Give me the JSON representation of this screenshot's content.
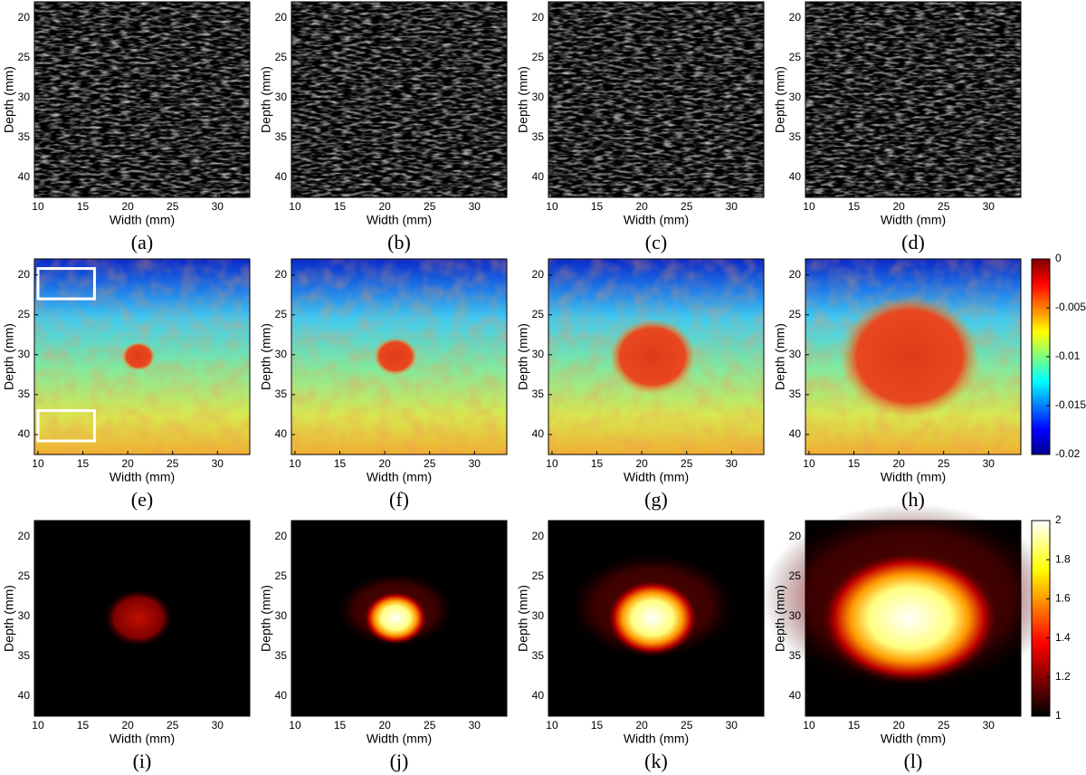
{
  "axes": {
    "x_label": "Width (mm)",
    "y_label": "Depth (mm)",
    "xlim": [
      9.6,
      33.6
    ],
    "xticks": [
      10,
      15,
      20,
      25,
      30
    ],
    "ylim": [
      18,
      42.5
    ],
    "yticks": [
      20,
      25,
      30,
      35,
      40
    ]
  },
  "rows": [
    {
      "panels": [
        "(a)",
        "(b)",
        "(c)",
        "(d)"
      ]
    },
    {
      "panels": [
        "(e)",
        "(f)",
        "(g)",
        "(h)"
      ],
      "colorbar": {
        "lim": [
          -0.02,
          0
        ],
        "ticks": [
          0,
          -0.005,
          -0.01,
          -0.015,
          -0.02
        ]
      }
    },
    {
      "panels": [
        "(i)",
        "(j)",
        "(k)",
        "(l)"
      ],
      "colorbar": {
        "lim": [
          1,
          2
        ],
        "ticks": [
          2,
          1.8,
          1.6,
          1.4,
          1.2,
          1
        ]
      }
    }
  ]
}
